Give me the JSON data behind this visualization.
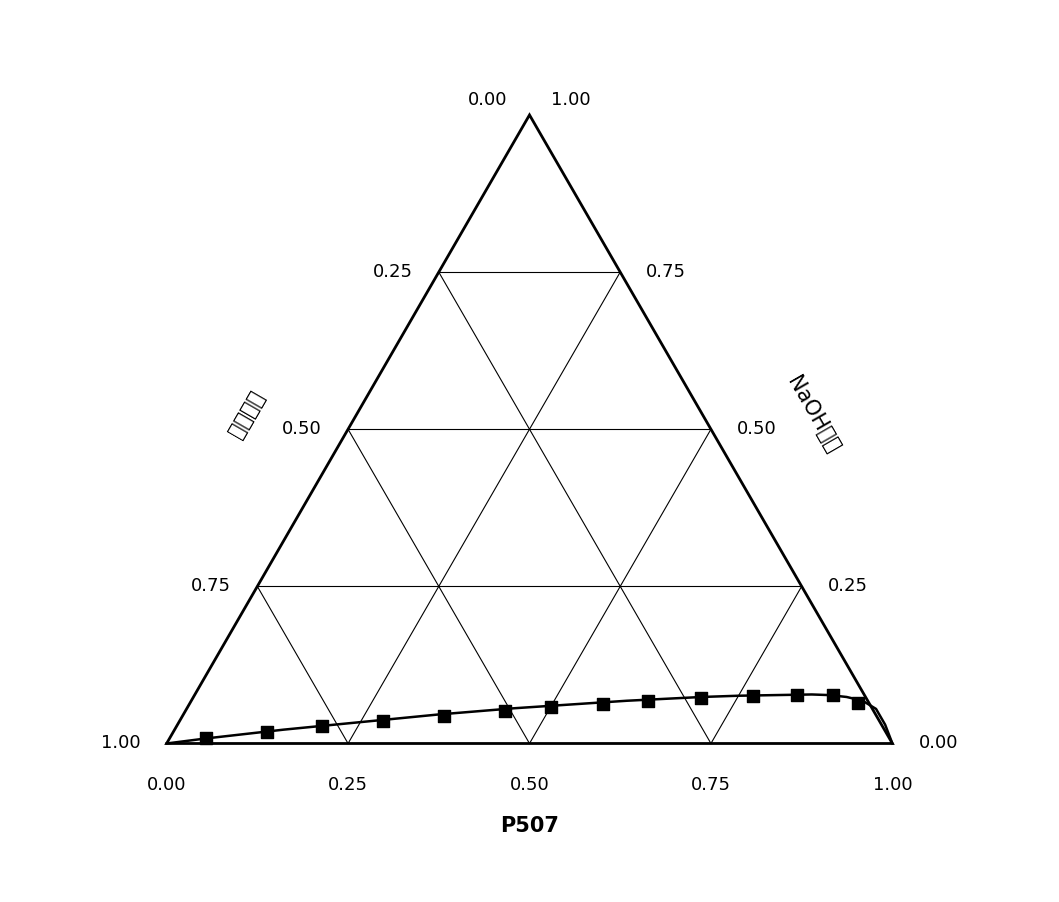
{
  "vertex_left_label": "磺化煤油",
  "vertex_right_label": "NaOH溶液",
  "bottom_label": "P507",
  "background_color": "#ffffff",
  "tick_fontsize": 13,
  "label_fontsize": 15,
  "curve_p507": [
    0.0,
    0.05,
    0.1,
    0.15,
    0.2,
    0.25,
    0.3,
    0.35,
    0.4,
    0.45,
    0.5,
    0.55,
    0.6,
    0.65,
    0.7,
    0.75,
    0.8,
    0.85,
    0.875,
    0.9,
    0.925,
    0.95,
    0.975,
    1.0
  ],
  "curve_naoh": [
    0.0,
    0.008,
    0.015,
    0.022,
    0.028,
    0.034,
    0.04,
    0.046,
    0.051,
    0.056,
    0.06,
    0.064,
    0.068,
    0.071,
    0.074,
    0.076,
    0.077,
    0.078,
    0.077,
    0.074,
    0.068,
    0.055,
    0.03,
    0.0
  ],
  "markers_p507": [
    0.05,
    0.13,
    0.2,
    0.28,
    0.36,
    0.44,
    0.5,
    0.57,
    0.63,
    0.7,
    0.77,
    0.83,
    0.88,
    0.92
  ],
  "markers_naoh": [
    0.008,
    0.018,
    0.028,
    0.036,
    0.044,
    0.052,
    0.058,
    0.063,
    0.067,
    0.072,
    0.075,
    0.077,
    0.077,
    0.065
  ]
}
